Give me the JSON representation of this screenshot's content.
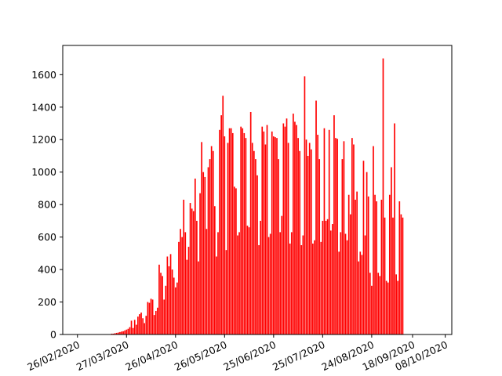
{
  "chart_data": {
    "type": "bar",
    "title": "",
    "xlabel": "",
    "ylabel": "",
    "bar_color": "#ff0000",
    "x_start": "2020-02-26",
    "x_end": "2020-10-08",
    "xlim": [
      "2020-02-17",
      "2020-10-12"
    ],
    "ylim": [
      0,
      1780
    ],
    "grid": false,
    "legend": "none",
    "x_tick_labels": [
      "26/02/2020",
      "27/03/2020",
      "26/04/2020",
      "26/05/2020",
      "25/06/2020",
      "25/07/2020",
      "24/08/2020",
      "18/09/2020",
      "08/10/2020"
    ],
    "x_tick_dates": [
      "2020-02-26",
      "2020-03-27",
      "2020-04-26",
      "2020-05-26",
      "2020-06-25",
      "2020-07-25",
      "2020-08-24",
      "2020-09-18",
      "2020-10-08"
    ],
    "y_ticks": [
      0,
      200,
      400,
      600,
      800,
      1000,
      1200,
      1400,
      1600
    ],
    "y_tick_labels": [
      "0",
      "200",
      "400",
      "600",
      "800",
      "1000",
      "1200",
      "1400",
      "1600"
    ],
    "values": [
      0,
      0,
      0,
      0,
      0,
      0,
      0,
      0,
      0,
      0,
      0,
      0,
      0,
      0,
      0,
      0,
      0,
      0,
      0,
      0,
      0,
      5,
      5,
      8,
      10,
      12,
      15,
      18,
      20,
      25,
      30,
      35,
      45,
      85,
      40,
      90,
      60,
      110,
      125,
      135,
      100,
      70,
      115,
      200,
      195,
      220,
      215,
      120,
      145,
      165,
      430,
      380,
      360,
      215,
      300,
      480,
      420,
      495,
      400,
      350,
      290,
      320,
      570,
      650,
      600,
      830,
      630,
      460,
      540,
      810,
      775,
      760,
      960,
      700,
      450,
      870,
      1185,
      1000,
      970,
      650,
      1030,
      1080,
      1160,
      1130,
      790,
      480,
      630,
      1260,
      1350,
      1470,
      1220,
      520,
      1180,
      1270,
      1270,
      1240,
      910,
      900,
      610,
      630,
      1280,
      1270,
      1240,
      1210,
      670,
      660,
      1370,
      1180,
      1130,
      1080,
      980,
      550,
      700,
      1280,
      1250,
      1170,
      1290,
      600,
      620,
      1250,
      1220,
      1215,
      1210,
      1080,
      630,
      730,
      1300,
      1280,
      1330,
      1180,
      560,
      630,
      1360,
      1310,
      1290,
      1210,
      1130,
      550,
      610,
      1590,
      1200,
      1100,
      1180,
      1140,
      560,
      580,
      1440,
      1230,
      1080,
      570,
      700,
      1270,
      700,
      710,
      1260,
      640,
      680,
      1350,
      1210,
      1205,
      510,
      630,
      1080,
      1190,
      620,
      580,
      860,
      740,
      1210,
      1170,
      830,
      880,
      450,
      510,
      490,
      1070,
      610,
      1000,
      850,
      380,
      300,
      1160,
      860,
      820,
      380,
      360,
      830,
      1700,
      720,
      330,
      320,
      860,
      1030,
      720,
      1300,
      370,
      330,
      820,
      740,
      720
    ]
  }
}
